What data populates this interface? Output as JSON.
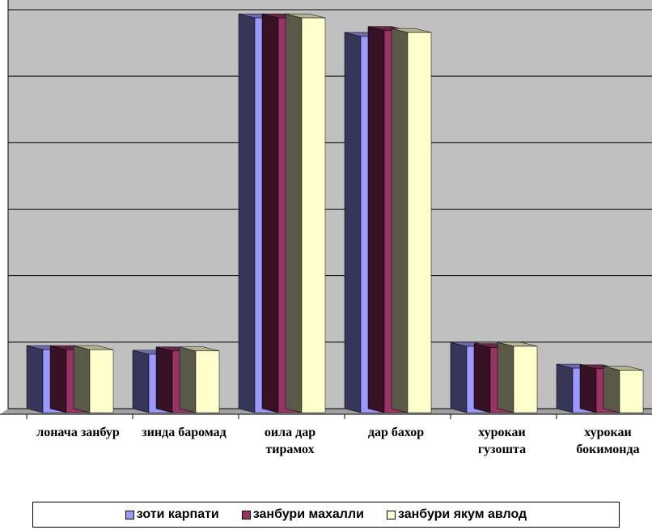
{
  "chart_data": {
    "type": "bar3d",
    "categories": [
      "лонача занбур",
      "зинда баромад",
      "оила дар тирамох",
      "дар бахор",
      "хурокаи гузошта",
      "хурокаи бокимонда"
    ],
    "series": [
      {
        "name": "зоти карпати",
        "color": "#9999ff",
        "values": [
          0.95,
          0.88,
          5.95,
          5.67,
          1.0,
          0.67
        ]
      },
      {
        "name": "занбури махалли",
        "color": "#993366",
        "values": [
          0.95,
          0.93,
          5.95,
          5.76,
          0.98,
          0.66
        ]
      },
      {
        "name": "занбури якум авлод",
        "color": "#ffffcc",
        "values": [
          0.95,
          0.93,
          5.95,
          5.73,
          1.0,
          0.64
        ]
      }
    ],
    "ylim": [
      0,
      6
    ],
    "yticks": [
      0,
      1,
      2,
      3,
      4,
      5,
      6
    ],
    "grid": true
  }
}
